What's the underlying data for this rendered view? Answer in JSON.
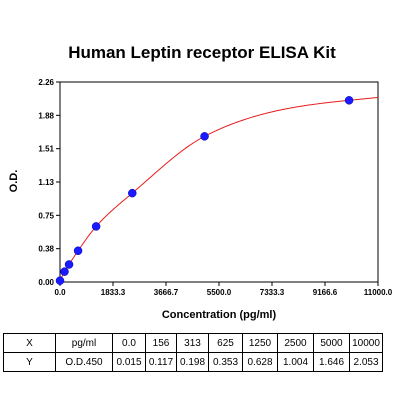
{
  "chart_data": {
    "type": "scatter",
    "title": "Human Leptin receptor ELISA Kit",
    "xlabel": "Concentration (pg/ml)",
    "ylabel": "O.D.",
    "xlim": [
      0,
      11000
    ],
    "ylim": [
      0,
      2.26
    ],
    "x_ticks": [
      "0.0",
      "1833.3",
      "3666.7",
      "5500.0",
      "7333.3",
      "9166.6",
      "11000.0"
    ],
    "y_ticks": [
      "0.00",
      "0.38",
      "0.75",
      "1.13",
      "1.51",
      "1.88",
      "2.26"
    ],
    "points": [
      {
        "x": 0,
        "y": 0.015
      },
      {
        "x": 156,
        "y": 0.117
      },
      {
        "x": 313,
        "y": 0.198
      },
      {
        "x": 625,
        "y": 0.353
      },
      {
        "x": 1250,
        "y": 0.628
      },
      {
        "x": 2500,
        "y": 1.004
      },
      {
        "x": 5000,
        "y": 1.646
      },
      {
        "x": 10000,
        "y": 2.053
      }
    ],
    "point_color": "#1a1aff",
    "curve_color": "#e81c1c",
    "grid": false
  },
  "table": {
    "rows": [
      [
        "X",
        "pg/ml",
        "0.0",
        "156",
        "313",
        "625",
        "1250",
        "2500",
        "5000",
        "10000"
      ],
      [
        "Y",
        "O.D.450",
        "0.015",
        "0.117",
        "0.198",
        "0.353",
        "0.628",
        "1.004",
        "1.646",
        "2.053"
      ]
    ]
  }
}
